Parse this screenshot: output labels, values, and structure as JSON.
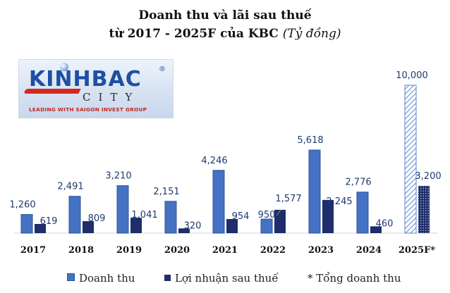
{
  "title_line1": "Doanh thu và lãi sau thuế",
  "title_line2_prefix": "từ 2017 - 2025F của KBC",
  "title_unit": "(Tỷ đồng)",
  "logo": {
    "word": "KINHBAC",
    "reg": "®",
    "city": "CITY",
    "tagline": "LEADING WITH SAIGON INVEST GROUP"
  },
  "colors": {
    "revenue": "#4472c4",
    "revenue_edge": "#2f5597",
    "profit": "#1f2d6b",
    "forecast_revenue_hatch": "hatched light blue",
    "forecast_profit_pattern": "dotted navy"
  },
  "chart_data": {
    "type": "bar",
    "categories": [
      "2017",
      "2018",
      "2019",
      "2020",
      "2021",
      "2022",
      "2023",
      "2024",
      "2025F*"
    ],
    "series": [
      {
        "name": "Doanh thu",
        "values": [
          1260,
          2491,
          3210,
          2151,
          4246,
          950,
          5618,
          2776,
          10000
        ]
      },
      {
        "name": "Lợi nhuận sau thuế",
        "values": [
          619,
          809,
          1041,
          320,
          954,
          1577,
          2245,
          460,
          3200
        ]
      }
    ],
    "value_labels": {
      "Doanh thu": [
        "1,260",
        "2,491",
        "3,210",
        "2,151",
        "4,246",
        "950",
        "5,618",
        "2,776",
        "10,000"
      ],
      "Lợi nhuận sau thuế": [
        "619",
        "809",
        "1,041",
        "320",
        "954",
        "1,577",
        "2,245",
        "460",
        "3,200"
      ]
    },
    "ylim": [
      0,
      10000
    ],
    "grid": false,
    "legend_position": "bottom",
    "footnote_legend": "* Tổng doanh thu"
  }
}
